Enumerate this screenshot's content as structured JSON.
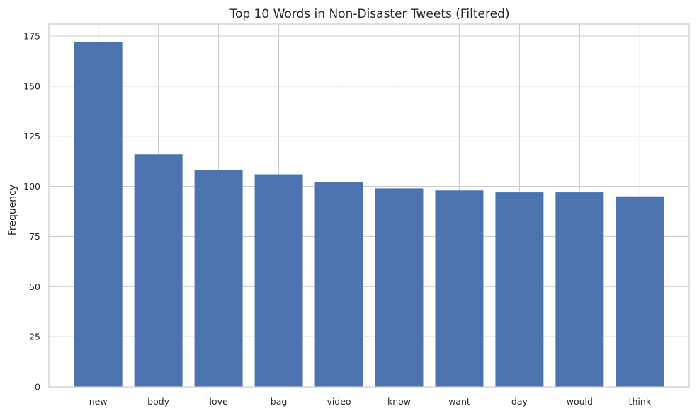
{
  "chart_data": {
    "type": "bar",
    "title": "Top 10 Words in Non-Disaster Tweets (Filtered)",
    "xlabel": "",
    "ylabel": "Frequency",
    "categories": [
      "new",
      "body",
      "love",
      "bag",
      "video",
      "know",
      "want",
      "day",
      "would",
      "think"
    ],
    "values": [
      172,
      116,
      108,
      106,
      102,
      99,
      98,
      97,
      97,
      95
    ],
    "ylim": [
      0,
      181
    ],
    "yticks": [
      0,
      25,
      50,
      75,
      100,
      125,
      150,
      175
    ],
    "grid": true,
    "legend": "none",
    "bar_color": "#4c72b0",
    "grid_color": "#cccccc",
    "background_color": "#ffffff"
  }
}
